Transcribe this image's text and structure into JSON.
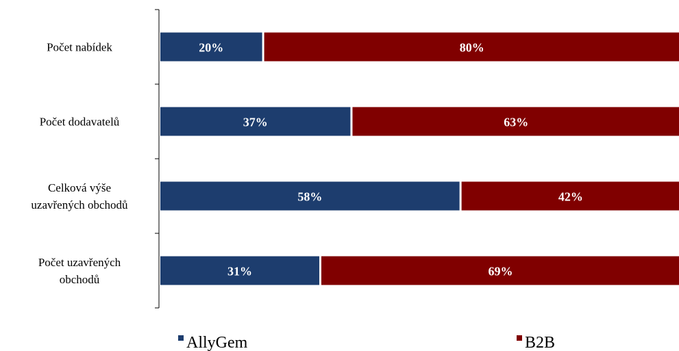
{
  "chart_data": {
    "type": "bar",
    "orientation": "horizontal",
    "stacked": "percent",
    "categories": [
      [
        "Počet nabídek"
      ],
      [
        "Počet dodavatelů"
      ],
      [
        "Celková výše",
        "uzavřených obchodů"
      ],
      [
        "Počet uzavřených",
        "obchodů"
      ]
    ],
    "series": [
      {
        "name": "AllyGem",
        "color": "#1d3d6e",
        "values": [
          20,
          37,
          58,
          31
        ],
        "labels": [
          "20%",
          "37%",
          "58%",
          "31%"
        ]
      },
      {
        "name": "B2B",
        "color": "#800000",
        "values": [
          80,
          63,
          42,
          69
        ],
        "labels": [
          "80%",
          "63%",
          "42%",
          "69%"
        ]
      }
    ],
    "xlim": [
      0,
      100
    ],
    "grid": false,
    "legend_position": "bottom",
    "title": "",
    "xlabel": "",
    "ylabel": ""
  }
}
